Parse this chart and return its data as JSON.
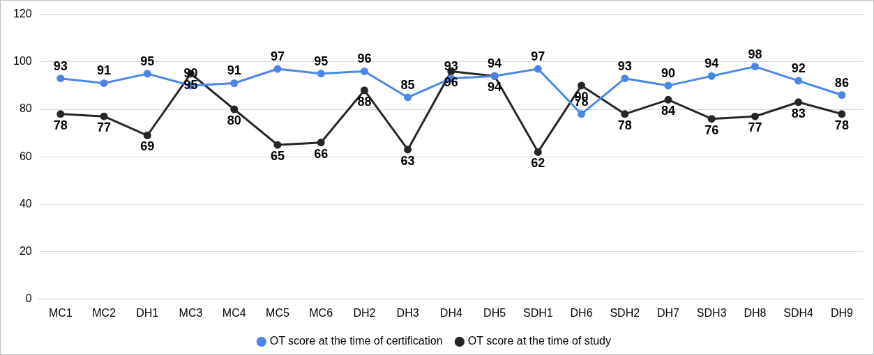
{
  "chart_data": {
    "type": "line",
    "categories": [
      "MC1",
      "MC2",
      "DH1",
      "MC3",
      "MC4",
      "MC5",
      "MC6",
      "DH2",
      "DH3",
      "DH4",
      "DH5",
      "SDH1",
      "DH6",
      "SDH2",
      "DH7",
      "SDH3",
      "DH8",
      "SDH4",
      "DH9"
    ],
    "series": [
      {
        "name": "OT score at the time of certification",
        "color": "#4a86e8",
        "values": [
          93,
          91,
          95,
          90,
          91,
          97,
          95,
          96,
          85,
          93,
          94,
          97,
          78,
          93,
          90,
          94,
          98,
          92,
          86
        ]
      },
      {
        "name": "OT score at the time of study",
        "color": "#262626",
        "values": [
          78,
          77,
          69,
          95,
          80,
          65,
          66,
          88,
          63,
          96,
          94,
          62,
          90,
          78,
          84,
          76,
          77,
          83,
          78
        ]
      }
    ],
    "ylim": [
      0,
      120
    ],
    "yticks": [
      0,
      20,
      40,
      60,
      80,
      100,
      120
    ],
    "grid": "y",
    "legend": "bottom",
    "marker": "circle",
    "line_style": "solid",
    "data_labels": true
  }
}
